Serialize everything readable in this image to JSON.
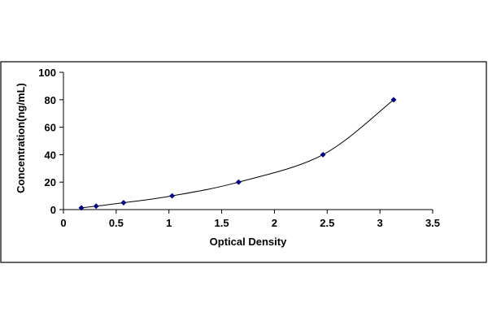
{
  "chart_data": {
    "type": "scatter",
    "title": "",
    "xlabel": "Optical Density",
    "ylabel": "Concentration(ng/mL)",
    "xlim": [
      0,
      3.5
    ],
    "ylim": [
      0,
      100
    ],
    "x_ticks": [
      "0",
      "0.5",
      "1",
      "1.5",
      "2",
      "2.5",
      "3",
      "3.5"
    ],
    "y_ticks": [
      "0",
      "20",
      "40",
      "60",
      "80",
      "100"
    ],
    "grid": false,
    "legend": "none",
    "series": [
      {
        "x": [
          0.17,
          0.31,
          0.57,
          1.03,
          1.66,
          2.46,
          3.13
        ],
        "y": [
          1.25,
          2.5,
          5,
          10,
          20,
          40,
          80
        ],
        "marker": "diamond",
        "line": "smooth-fit",
        "color": "#000080"
      }
    ]
  }
}
